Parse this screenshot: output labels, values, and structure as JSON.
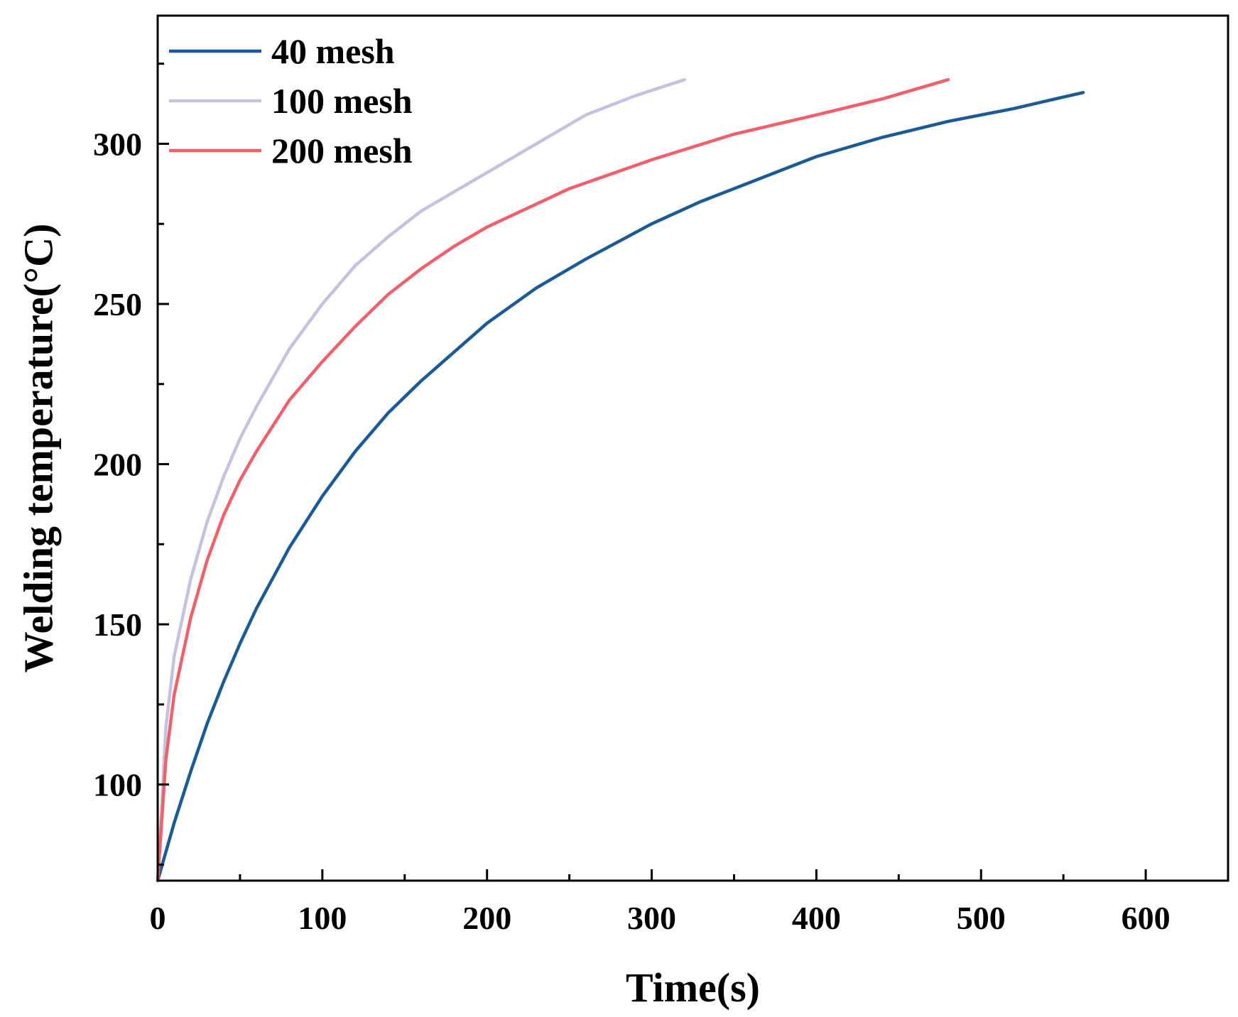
{
  "chart_data": {
    "type": "line",
    "title": "",
    "xlabel": "Time(s)",
    "ylabel": "Welding temperature(°C)",
    "xlim": [
      0,
      650
    ],
    "ylim": [
      70,
      340
    ],
    "x_ticks": [
      0,
      100,
      200,
      300,
      400,
      500,
      600
    ],
    "x_tick_labels": [
      "0",
      "100",
      "200",
      "300",
      "400",
      "500",
      "600"
    ],
    "x_minor_ticks": [
      50,
      150,
      250,
      350,
      450,
      550
    ],
    "y_ticks": [
      100,
      150,
      200,
      250,
      300
    ],
    "y_tick_labels": [
      "100",
      "150",
      "200",
      "250",
      "300"
    ],
    "y_minor_ticks": [
      75,
      125,
      175,
      225,
      275,
      325
    ],
    "grid": false,
    "legend_position": "top-left",
    "series": [
      {
        "name": "40 mesh",
        "color": "#1a5a96",
        "x": [
          0,
          10,
          20,
          30,
          40,
          50,
          60,
          80,
          100,
          120,
          140,
          160,
          180,
          200,
          230,
          260,
          300,
          330,
          360,
          400,
          440,
          480,
          520,
          545,
          562
        ],
        "y": [
          70,
          88,
          104,
          119,
          132,
          144,
          155,
          174,
          190,
          204,
          216,
          226,
          235,
          244,
          255,
          264,
          275,
          282,
          288,
          296,
          302,
          307,
          311,
          314,
          316
        ]
      },
      {
        "name": "100 mesh",
        "color": "#c3c3e0",
        "x": [
          0,
          5,
          10,
          20,
          30,
          40,
          50,
          60,
          80,
          100,
          120,
          140,
          160,
          180,
          200,
          230,
          260,
          290,
          320
        ],
        "y": [
          70,
          118,
          140,
          164,
          182,
          196,
          208,
          218,
          236,
          250,
          262,
          271,
          279,
          285,
          291,
          300,
          309,
          315,
          320
        ]
      },
      {
        "name": "200 mesh",
        "color": "#f0606a",
        "x": [
          0,
          5,
          10,
          20,
          30,
          40,
          50,
          60,
          80,
          100,
          120,
          140,
          160,
          180,
          200,
          250,
          300,
          350,
          400,
          440,
          480
        ],
        "y": [
          70,
          108,
          128,
          152,
          170,
          184,
          195,
          204,
          220,
          232,
          243,
          253,
          261,
          268,
          274,
          286,
          295,
          303,
          309,
          314,
          320
        ]
      }
    ]
  }
}
